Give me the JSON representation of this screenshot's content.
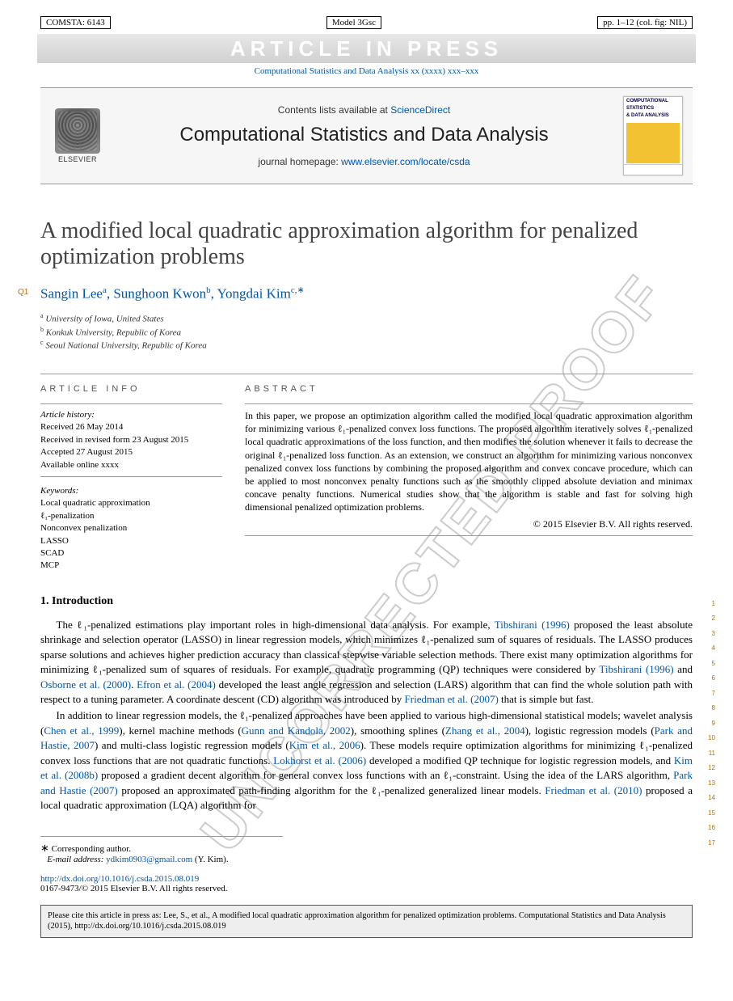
{
  "meta": {
    "id_box": "COMSTA: 6143",
    "model_box": "Model 3Gsc",
    "pp_box": "pp. 1–12 (col. fig: NIL)",
    "in_press": "ARTICLE IN PRESS",
    "running": "Computational Statistics and Data Analysis xx (xxxx) xxx–xxx"
  },
  "banner": {
    "contents_prefix": "Contents lists available at ",
    "contents_link": "ScienceDirect",
    "journal": "Computational Statistics and Data Analysis",
    "homepage_prefix": "journal homepage: ",
    "homepage_link": "www.elsevier.com/locate/csda",
    "publisher": "ELSEVIER",
    "cover_t1": "COMPUTATIONAL",
    "cover_t2": "STATISTICS",
    "cover_t3": "& DATA ANALYSIS"
  },
  "title": "A modified local quadratic approximation algorithm for penalized optimization problems",
  "q1": "Q1",
  "authors": [
    {
      "name": "Sangin Lee",
      "aff": "a"
    },
    {
      "name": "Sunghoon Kwon",
      "aff": "b"
    },
    {
      "name": "Yongdai Kim",
      "aff": "c",
      "corr": true
    }
  ],
  "affiliations": [
    {
      "key": "a",
      "text": "University of Iowa, United States"
    },
    {
      "key": "b",
      "text": "Konkuk University, Republic of Korea"
    },
    {
      "key": "c",
      "text": "Seoul National University, Republic of Korea"
    }
  ],
  "info_heading": "article info",
  "abstract_heading": "abstract",
  "history": {
    "label": "Article history:",
    "received": "Received 26 May 2014",
    "revised": "Received in revised form 23 August 2015",
    "accepted": "Accepted 27 August 2015",
    "online": "Available online xxxx"
  },
  "keywords": {
    "label": "Keywords:",
    "items": [
      "Local quadratic approximation",
      "ℓ₁-penalization",
      "Nonconvex penalization",
      "LASSO",
      "SCAD",
      "MCP"
    ]
  },
  "abstract": "In this paper, we propose an optimization algorithm called the modified local quadratic approximation algorithm for minimizing various ℓ₁-penalized convex loss functions. The proposed algorithm iteratively solves ℓ₁-penalized local quadratic approximations of the loss function, and then modifies the solution whenever it fails to decrease the original ℓ₁-penalized loss function. As an extension, we construct an algorithm for minimizing various nonconvex penalized convex loss functions by combining the proposed algorithm and convex concave procedure, which can be applied to most nonconvex penalty functions such as the smoothly clipped absolute deviation and minimax concave penalty functions. Numerical studies show that the algorithm is stable and fast for solving high dimensional penalized optimization problems.",
  "copyright": "© 2015 Elsevier B.V. All rights reserved.",
  "section1": "1. Introduction",
  "para1_parts": {
    "t0": "The ℓ₁-penalized estimations play important roles in high-dimensional data analysis. For example, ",
    "l1": "Tibshirani (1996)",
    "t1": " proposed the least absolute shrinkage and selection operator (LASSO) in linear regression models, which minimizes ℓ₁-penalized sum of squares of residuals. The LASSO produces sparse solutions and achieves higher prediction accuracy than classical stepwise variable selection methods. There exist many optimization algorithms for minimizing ℓ₁-penalized sum of squares of residuals. For example, quadratic programming (QP) techniques were considered by ",
    "l2": "Tibshirani (1996)",
    "t2": " and ",
    "l3": "Osborne et al. (2000)",
    "t3": ". ",
    "l4": "Efron et al. (2004)",
    "t4": " developed the least angle regression and selection (LARS) algorithm that can find the whole solution path with respect to a tuning parameter. A coordinate descent (CD) algorithm was introduced by ",
    "l5": "Friedman et al. (2007)",
    "t5": " that is simple but fast."
  },
  "para2_parts": {
    "t0": "In addition to linear regression models, the ℓ₁-penalized approaches have been applied to various high-dimensional statistical models; wavelet analysis (",
    "l1": "Chen et al., 1999",
    "t1": "), kernel machine methods (",
    "l2": "Gunn and Kandola, 2002",
    "t2": "), smoothing splines (",
    "l3": "Zhang et al., 2004",
    "t3": "), logistic regression models (",
    "l4": "Park and Hastie, 2007",
    "t4": ") and multi-class logistic regression models (",
    "l5": "Kim et al., 2006",
    "t5": "). These models require optimization algorithms for minimizing ℓ₁-penalized convex loss functions that are not quadratic functions. ",
    "l6": "Lokhorst et al. (2006)",
    "t6": " developed a modified QP technique for logistic regression models, and ",
    "l7": "Kim et al. (2008b)",
    "t7": " proposed a gradient decent algorithm for general convex loss functions with an ℓ₁-constraint. Using the idea of the LARS algorithm, ",
    "l8": "Park and Hastie (2007)",
    "t8": " proposed an approximated path-finding algorithm for the ℓ₁-penalized generalized linear models. ",
    "l9": "Friedman et al. (2010)",
    "t9": " proposed a local quadratic approximation (LQA) algorithm for"
  },
  "line_numbers": [
    "1",
    "2",
    "3",
    "4",
    "5",
    "6",
    "7",
    "8",
    "9",
    "10",
    "11",
    "12",
    "13",
    "14",
    "15",
    "16",
    "17"
  ],
  "corr": {
    "label": "Corresponding author.",
    "email_label": "E-mail address:",
    "email": "ydkim0903@gmail.com",
    "who": "(Y. Kim)."
  },
  "doi": {
    "url": "http://dx.doi.org/10.1016/j.csda.2015.08.019",
    "issn": "0167-9473/© 2015 Elsevier B.V. All rights reserved."
  },
  "cite": "Please cite this article in press as: Lee, S., et al., A modified local quadratic approximation algorithm for penalized optimization problems. Computational Statistics and Data Analysis (2015), http://dx.doi.org/10.1016/j.csda.2015.08.019",
  "watermark_diag": "UNCORRECTED PROOF",
  "colors": {
    "link": "#0056a8",
    "q_orange": "#c46b00"
  }
}
